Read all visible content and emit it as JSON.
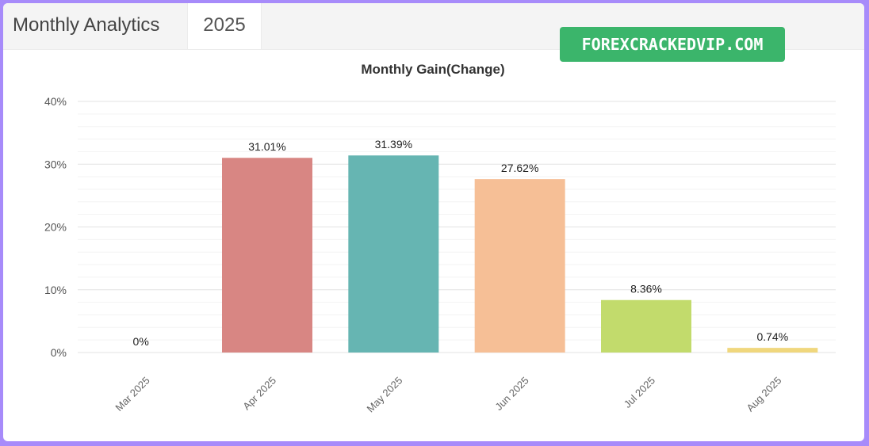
{
  "header": {
    "tabs": [
      {
        "label": "Monthly Analytics"
      },
      {
        "label": "2025"
      }
    ]
  },
  "watermark": "FOREXCRACKEDVIP.COM",
  "chart_data": {
    "type": "bar",
    "title": "Monthly Gain(Change)",
    "categories": [
      "Mar 2025",
      "Apr 2025",
      "May 2025",
      "Jun 2025",
      "Jul 2025",
      "Aug 2025"
    ],
    "values": [
      0,
      31.01,
      31.39,
      27.62,
      8.36,
      0.74
    ],
    "data_labels": [
      "0%",
      "31.01%",
      "31.39%",
      "27.62%",
      "8.36%",
      "0.74%"
    ],
    "colors": [
      "#d88683",
      "#d88683",
      "#66b5b2",
      "#f6bf96",
      "#c2db6c",
      "#f0d77d"
    ],
    "y_ticks": [
      "0%",
      "10%",
      "20%",
      "30%",
      "40%"
    ],
    "ylim": [
      0,
      40
    ],
    "xlabel": "",
    "ylabel": "",
    "grid": true,
    "legend": false
  }
}
